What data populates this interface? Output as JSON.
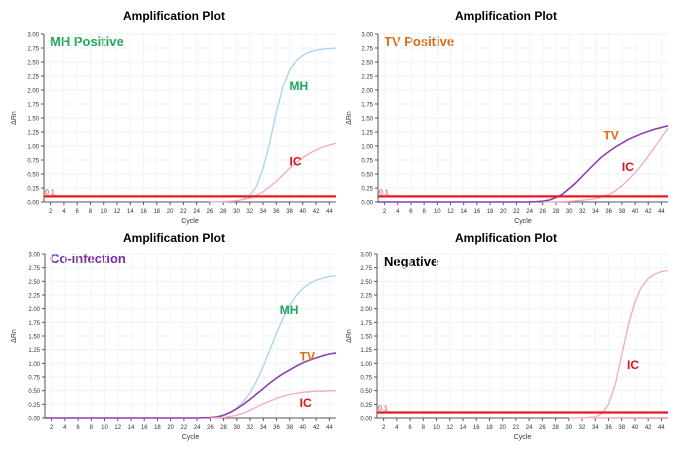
{
  "panels": [
    {
      "title": "Amplification Plot",
      "label": "MH Positive"
    },
    {
      "title": "Amplification Plot",
      "label": "TV Positive"
    },
    {
      "title": "Amplification Plot",
      "label": "Co-infection"
    },
    {
      "title": "Amplification Plot",
      "label": "Negative"
    }
  ],
  "colors": {
    "MH": "#a8d4f0",
    "IC": "#f7a8c0",
    "TV": "#8e3fb0",
    "threshold": "#e8191f",
    "MH_label": "#1fa85c",
    "TV_label": "#e06a10",
    "IC_label": "#e0101a",
    "coinfection_label": "#7a2ca0",
    "negative_label": "#000000"
  },
  "chart_data": [
    {
      "type": "line",
      "title": "Amplification Plot",
      "label": "MH Positive",
      "xlabel": "Cycle",
      "ylabel": "ΔRn",
      "xlim": [
        1,
        45
      ],
      "ylim": [
        0,
        3.0
      ],
      "xticks": [
        "2",
        "4",
        "6",
        "8",
        "10",
        "12",
        "14",
        "16",
        "18",
        "20",
        "22",
        "24",
        "26",
        "28",
        "30",
        "32",
        "34",
        "36",
        "38",
        "40",
        "42",
        "44"
      ],
      "yticks": [
        "0.00",
        "0.25",
        "0.50",
        "0.75",
        "1.00",
        "1.25",
        "1.50",
        "1.75",
        "2.00",
        "2.25",
        "2.50",
        "2.75",
        "3.00"
      ],
      "threshold": {
        "value": 0.1,
        "label": "0.1"
      },
      "series": [
        {
          "name": "MH",
          "label_pos": [
            38,
            2.0
          ],
          "x": [
            26,
            28,
            30,
            31,
            32,
            33,
            34,
            35,
            36,
            37,
            38,
            39,
            40,
            41,
            42,
            43,
            44,
            45
          ],
          "y": [
            0,
            0.005,
            0.02,
            0.05,
            0.12,
            0.28,
            0.6,
            1.05,
            1.6,
            2.05,
            2.35,
            2.52,
            2.62,
            2.68,
            2.71,
            2.73,
            2.74,
            2.75
          ]
        },
        {
          "name": "IC",
          "label_pos": [
            38,
            0.65
          ],
          "x": [
            26,
            28,
            30,
            32,
            33,
            34,
            35,
            36,
            37,
            38,
            39,
            40,
            41,
            42,
            43,
            44,
            45
          ],
          "y": [
            0,
            0.005,
            0.02,
            0.07,
            0.12,
            0.18,
            0.27,
            0.37,
            0.48,
            0.6,
            0.7,
            0.79,
            0.87,
            0.93,
            0.98,
            1.02,
            1.05
          ]
        }
      ]
    },
    {
      "type": "line",
      "title": "Amplification Plot",
      "label": "TV Positive",
      "xlabel": "Cycle",
      "ylabel": "ΔRn",
      "xlim": [
        1,
        45
      ],
      "ylim": [
        0,
        3.0
      ],
      "xticks": [
        "2",
        "4",
        "6",
        "8",
        "10",
        "12",
        "14",
        "16",
        "18",
        "20",
        "22",
        "24",
        "26",
        "28",
        "30",
        "32",
        "34",
        "36",
        "38",
        "40",
        "42",
        "44"
      ],
      "yticks": [
        "0.00",
        "0.25",
        "0.50",
        "0.75",
        "1.00",
        "1.25",
        "1.50",
        "1.75",
        "2.00",
        "2.25",
        "2.50",
        "2.75",
        "3.00"
      ],
      "threshold": {
        "value": 0.1,
        "label": "0.1"
      },
      "series": [
        {
          "name": "TV",
          "label_pos": [
            35.2,
            1.12
          ],
          "x": [
            1,
            22,
            24,
            25,
            26,
            27,
            28,
            29,
            30,
            31,
            32,
            33,
            34,
            35,
            36,
            37,
            38,
            39,
            40,
            41,
            42,
            43,
            44,
            45
          ],
          "y": [
            0,
            0,
            0.002,
            0.005,
            0.015,
            0.035,
            0.08,
            0.14,
            0.24,
            0.34,
            0.46,
            0.58,
            0.7,
            0.81,
            0.9,
            0.98,
            1.05,
            1.12,
            1.17,
            1.22,
            1.26,
            1.3,
            1.33,
            1.36
          ]
        },
        {
          "name": "IC",
          "label_pos": [
            38,
            0.55
          ],
          "x": [
            26,
            28,
            30,
            32,
            34,
            36,
            37,
            38,
            39,
            40,
            41,
            42,
            43,
            44,
            45
          ],
          "y": [
            0,
            0.003,
            0.01,
            0.03,
            0.06,
            0.13,
            0.2,
            0.29,
            0.4,
            0.52,
            0.66,
            0.82,
            0.98,
            1.15,
            1.32
          ]
        }
      ]
    },
    {
      "type": "line",
      "title": "Amplification Plot",
      "label": "Co-infection",
      "xlabel": "Cycle",
      "ylabel": "ΔRn",
      "xlim": [
        1,
        45
      ],
      "ylim": [
        0,
        3.0
      ],
      "xticks": [
        "2",
        "4",
        "6",
        "8",
        "10",
        "12",
        "14",
        "16",
        "18",
        "20",
        "22",
        "24",
        "26",
        "28",
        "30",
        "32",
        "34",
        "36",
        "38",
        "40",
        "42",
        "44"
      ],
      "yticks": [
        "0.00",
        "0.25",
        "0.50",
        "0.75",
        "1.00",
        "1.25",
        "1.50",
        "1.75",
        "2.00",
        "2.25",
        "2.50",
        "2.75",
        "3.00"
      ],
      "threshold": null,
      "series": [
        {
          "name": "MH",
          "label_pos": [
            36.5,
            1.9
          ],
          "x": [
            24,
            26,
            27,
            28,
            29,
            30,
            31,
            32,
            33,
            34,
            35,
            36,
            37,
            38,
            39,
            40,
            41,
            42,
            43,
            44,
            45
          ],
          "y": [
            0,
            0.01,
            0.02,
            0.05,
            0.1,
            0.18,
            0.3,
            0.46,
            0.68,
            0.95,
            1.25,
            1.55,
            1.83,
            2.06,
            2.24,
            2.37,
            2.46,
            2.52,
            2.56,
            2.59,
            2.6
          ]
        },
        {
          "name": "TV",
          "label_pos": [
            39.5,
            1.05
          ],
          "x": [
            1,
            24,
            26,
            27,
            28,
            29,
            30,
            31,
            32,
            33,
            34,
            35,
            36,
            37,
            38,
            39,
            40,
            41,
            42,
            43,
            44,
            45
          ],
          "y": [
            0,
            0,
            0.01,
            0.02,
            0.05,
            0.1,
            0.17,
            0.25,
            0.34,
            0.44,
            0.54,
            0.64,
            0.73,
            0.81,
            0.88,
            0.95,
            1.01,
            1.06,
            1.1,
            1.14,
            1.17,
            1.19
          ]
        },
        {
          "name": "IC",
          "label_pos": [
            39.5,
            0.2
          ],
          "x": [
            26,
            28,
            30,
            31,
            32,
            33,
            34,
            35,
            36,
            37,
            38,
            39,
            40,
            41,
            42,
            43,
            44,
            45
          ],
          "y": [
            0,
            0.01,
            0.05,
            0.09,
            0.14,
            0.2,
            0.26,
            0.31,
            0.36,
            0.4,
            0.43,
            0.45,
            0.47,
            0.48,
            0.49,
            0.49,
            0.5,
            0.5
          ]
        }
      ]
    },
    {
      "type": "line",
      "title": "Amplification Plot",
      "label": "Negative",
      "xlabel": "Cycle",
      "ylabel": "ΔRn",
      "xlim": [
        1,
        45
      ],
      "ylim": [
        0,
        3.0
      ],
      "xticks": [
        "2",
        "4",
        "6",
        "8",
        "10",
        "12",
        "14",
        "16",
        "18",
        "20",
        "22",
        "24",
        "26",
        "28",
        "30",
        "32",
        "34",
        "36",
        "38",
        "40",
        "42",
        "44"
      ],
      "yticks": [
        "0.00",
        "0.25",
        "0.50",
        "0.75",
        "1.00",
        "1.25",
        "1.50",
        "1.75",
        "2.00",
        "2.25",
        "2.50",
        "2.75",
        "3.00"
      ],
      "threshold": {
        "value": 0.1,
        "label": "0.1"
      },
      "series": [
        {
          "name": "IC",
          "label_pos": [
            38.8,
            0.9
          ],
          "x": [
            30,
            32,
            34,
            35,
            36,
            37,
            38,
            39,
            40,
            41,
            42,
            43,
            44,
            45
          ],
          "y": [
            0,
            0.002,
            0.02,
            0.08,
            0.25,
            0.6,
            1.15,
            1.7,
            2.12,
            2.4,
            2.55,
            2.63,
            2.68,
            2.7
          ]
        },
        {
          "name": "",
          "x": [
            30,
            36,
            45
          ],
          "y": [
            0,
            0.005,
            0.01
          ]
        }
      ]
    }
  ]
}
